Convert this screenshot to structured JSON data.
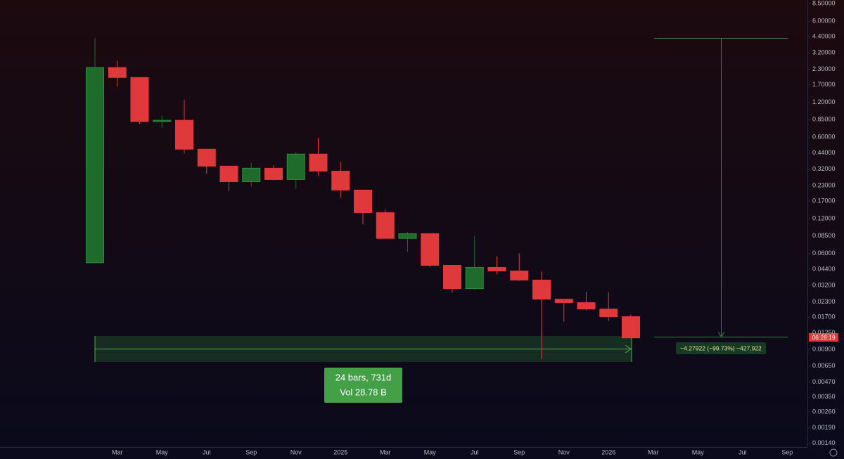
{
  "chart_data": {
    "type": "candlestick",
    "log_scale": true,
    "grid": false,
    "up_color": "#1f6b2c",
    "down_color": "#e0393b",
    "categories": [
      null,
      "Mar",
      null,
      "May",
      null,
      "Jul",
      null,
      "Sep",
      null,
      "Nov",
      null,
      "2025",
      null,
      "Mar",
      null,
      "May",
      null,
      "Jul",
      null,
      "Sep",
      null,
      "Nov",
      null,
      "2026",
      null,
      "Mar",
      null,
      "May",
      null,
      "Jul",
      null,
      "Sep"
    ],
    "open": [
      0.05,
      2.39,
      1.96,
      0.82,
      0.84,
      0.474,
      0.339,
      0.249,
      0.325,
      0.26,
      0.43,
      0.307,
      0.211,
      0.135,
      0.081,
      0.089,
      0.0475,
      0.03,
      0.0456,
      0.0425,
      0.0355,
      0.0243,
      0.0227,
      0.02,
      0.0172,
      null,
      null,
      null,
      null,
      null,
      null,
      null
    ],
    "high": [
      4.29,
      2.74,
      1.96,
      0.925,
      1.26,
      0.474,
      0.339,
      0.364,
      0.345,
      0.448,
      0.593,
      0.37,
      0.211,
      0.144,
      0.0915,
      0.089,
      0.0475,
      0.085,
      0.057,
      0.06,
      0.042,
      0.0243,
      0.0282,
      0.0279,
      0.018,
      null,
      null,
      null,
      null,
      null,
      null,
      null
    ],
    "low": [
      0.05,
      1.64,
      0.78,
      0.72,
      0.436,
      0.291,
      0.206,
      0.226,
      0.255,
      0.217,
      0.28,
      0.181,
      0.107,
      0.081,
      0.062,
      0.046,
      0.0276,
      0.0295,
      0.0397,
      0.035,
      0.0074,
      0.0156,
      0.0195,
      0.0158,
      0.0113,
      null,
      null,
      null,
      null,
      null,
      null,
      null
    ],
    "close": [
      2.39,
      1.96,
      0.82,
      0.84,
      0.474,
      0.339,
      0.249,
      0.325,
      0.26,
      0.43,
      0.307,
      0.211,
      0.135,
      0.081,
      0.089,
      0.0475,
      0.03,
      0.0456,
      0.0425,
      0.0355,
      0.0243,
      0.0227,
      0.02,
      0.0172,
      0.0113,
      null,
      null,
      null,
      null,
      null,
      null,
      null
    ],
    "ylim": [
      0.0013,
      9.1
    ],
    "yticks": [
      {
        "value": 8.5,
        "label": "8.50000"
      },
      {
        "value": 6,
        "label": "6.00000"
      },
      {
        "value": 4.4,
        "label": "4.40000"
      },
      {
        "value": 3.2,
        "label": "3.20000"
      },
      {
        "value": 2.3,
        "label": "2.30000"
      },
      {
        "value": 1.7,
        "label": "1.70000"
      },
      {
        "value": 1.2,
        "label": "1.20000"
      },
      {
        "value": 0.85,
        "label": "0.85000"
      },
      {
        "value": 0.6,
        "label": "0.60000"
      },
      {
        "value": 0.44,
        "label": "0.44000"
      },
      {
        "value": 0.32,
        "label": "0.32000"
      },
      {
        "value": 0.23,
        "label": "0.23000"
      },
      {
        "value": 0.17,
        "label": "0.17000"
      },
      {
        "value": 0.12,
        "label": "0.12000"
      },
      {
        "value": 0.085,
        "label": "0.08500"
      },
      {
        "value": 0.06,
        "label": "0.06000"
      },
      {
        "value": 0.044,
        "label": "0.04400"
      },
      {
        "value": 0.032,
        "label": "0.03200"
      },
      {
        "value": 0.023,
        "label": "0.02300"
      },
      {
        "value": 0.017,
        "label": "0.01700"
      },
      {
        "value": 0.0125,
        "label": "0.01250"
      },
      {
        "value": 0.009,
        "label": "0.00900"
      },
      {
        "value": 0.0065,
        "label": "0.00650"
      },
      {
        "value": 0.0047,
        "label": "0.00470"
      },
      {
        "value": 0.0035,
        "label": "0.00350"
      },
      {
        "value": 0.0026,
        "label": "0.00260"
      },
      {
        "value": 0.0019,
        "label": "0.00190"
      },
      {
        "value": 0.0014,
        "label": "0.00140"
      }
    ],
    "countdown": "06:28:19",
    "measure_label": "24 bars, 731d",
    "volume_label": "Vol 28.78 B",
    "range_label": "−4.27922 (−99.73%) −427,922"
  }
}
